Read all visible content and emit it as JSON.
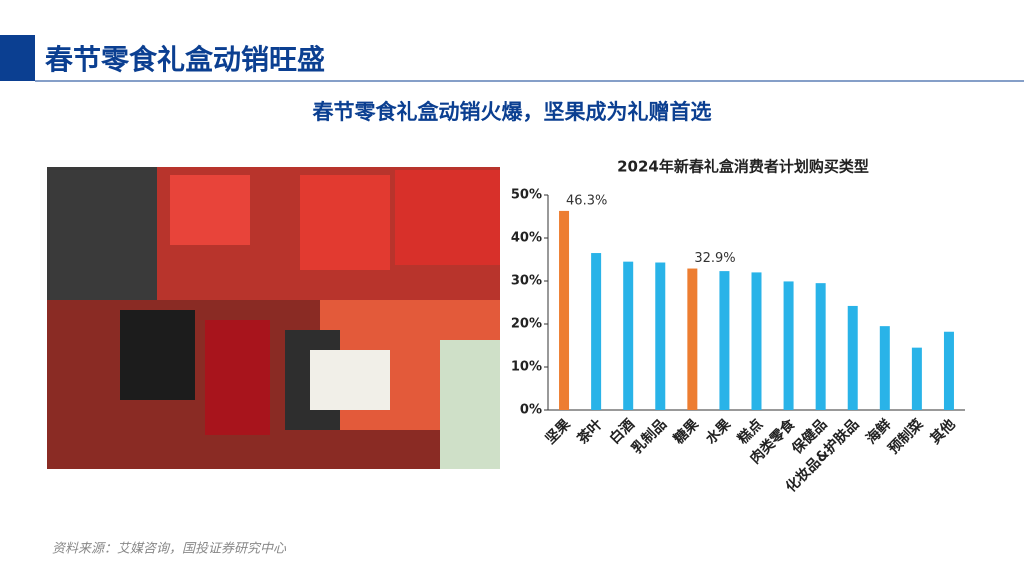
{
  "header": {
    "title": "春节零食礼盒动销旺盛",
    "subtitle": "春节零食礼盒动销火爆，坚果成为礼赠首选"
  },
  "chart_data": {
    "type": "bar",
    "title": "2024年新春礼盒消费者计划购买类型",
    "categories": [
      "坚果",
      "茶叶",
      "白酒",
      "乳制品",
      "糖果",
      "水果",
      "糕点",
      "肉类零食",
      "保健品",
      "化妆品&护肤品",
      "海鲜",
      "预制菜",
      "其他"
    ],
    "values": [
      46.3,
      36.5,
      34.5,
      34.3,
      32.9,
      32.3,
      32.0,
      29.9,
      29.5,
      24.2,
      19.5,
      14.5,
      18.2
    ],
    "value_labels": [
      "46.3%",
      null,
      null,
      null,
      "32.9%",
      null,
      null,
      null,
      null,
      null,
      null,
      null,
      null
    ],
    "colors": [
      "#ed7d31",
      "#29b3e8",
      "#29b3e8",
      "#29b3e8",
      "#ed7d31",
      "#29b3e8",
      "#29b3e8",
      "#29b3e8",
      "#29b3e8",
      "#29b3e8",
      "#29b3e8",
      "#29b3e8",
      "#29b3e8"
    ],
    "ylim": [
      0,
      50
    ],
    "yticks": [
      {
        "value": 0,
        "label": "0%"
      },
      {
        "value": 10,
        "label": "10%"
      },
      {
        "value": 20,
        "label": "20%"
      },
      {
        "value": 30,
        "label": "30%"
      },
      {
        "value": 40,
        "label": "40%"
      },
      {
        "value": 50,
        "label": "50%"
      }
    ]
  },
  "source": "资料来源：艾媒咨询，国投证券研究中心"
}
